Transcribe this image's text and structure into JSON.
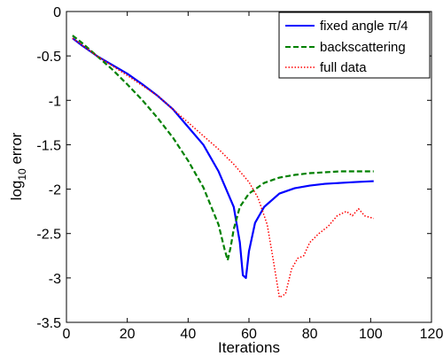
{
  "chart_data": {
    "type": "line",
    "title": "",
    "xlabel": "Iterations",
    "ylabel": {
      "base": "log",
      "sub": "10",
      "rest": " error"
    },
    "xlim": [
      0,
      120
    ],
    "ylim": [
      -3.5,
      0
    ],
    "xticks": [
      "0",
      "20",
      "40",
      "60",
      "80",
      "100",
      "120"
    ],
    "xtick_values": [
      0,
      20,
      40,
      60,
      80,
      100,
      120
    ],
    "yticks": [
      "-3.5",
      "-3",
      "-2.5",
      "-2",
      "-1.5",
      "-1",
      "-0.5",
      "0"
    ],
    "ytick_values": [
      -3.5,
      -3,
      -2.5,
      -2,
      -1.5,
      -1,
      -0.5,
      0
    ],
    "grid": false,
    "legend_position": "top-right",
    "series": [
      {
        "name": "fixed angle π/4",
        "color": "#0000ff",
        "style": "solid",
        "x": [
          2,
          5,
          10,
          15,
          20,
          25,
          30,
          35,
          40,
          45,
          50,
          55,
          57,
          58,
          59,
          60,
          62,
          65,
          70,
          75,
          80,
          85,
          90,
          95,
          101
        ],
        "y": [
          -0.3,
          -0.38,
          -0.5,
          -0.6,
          -0.7,
          -0.82,
          -0.95,
          -1.1,
          -1.3,
          -1.5,
          -1.8,
          -2.2,
          -2.6,
          -2.97,
          -3.0,
          -2.7,
          -2.38,
          -2.2,
          -2.05,
          -1.99,
          -1.96,
          -1.94,
          -1.93,
          -1.92,
          -1.91
        ]
      },
      {
        "name": "backscattering",
        "color": "#008000",
        "style": "dashed",
        "x": [
          2,
          5,
          10,
          15,
          20,
          25,
          30,
          35,
          40,
          45,
          50,
          52,
          53,
          54,
          55,
          57,
          60,
          65,
          70,
          75,
          80,
          85,
          90,
          95,
          101
        ],
        "y": [
          -0.27,
          -0.35,
          -0.5,
          -0.65,
          -0.82,
          -1.0,
          -1.2,
          -1.42,
          -1.68,
          -1.98,
          -2.4,
          -2.68,
          -2.8,
          -2.65,
          -2.45,
          -2.2,
          -2.05,
          -1.93,
          -1.87,
          -1.84,
          -1.82,
          -1.81,
          -1.8,
          -1.8,
          -1.8
        ]
      },
      {
        "name": "full data",
        "color": "#ff0000",
        "style": "dotted",
        "x": [
          2,
          10,
          20,
          30,
          40,
          50,
          55,
          60,
          63,
          66,
          68,
          70,
          72,
          74,
          76,
          78,
          80,
          83,
          86,
          89,
          92,
          94,
          96,
          98,
          101
        ],
        "y": [
          -0.3,
          -0.5,
          -0.72,
          -0.95,
          -1.25,
          -1.55,
          -1.72,
          -1.92,
          -2.1,
          -2.4,
          -2.8,
          -3.22,
          -3.18,
          -2.9,
          -2.78,
          -2.75,
          -2.6,
          -2.5,
          -2.42,
          -2.3,
          -2.25,
          -2.3,
          -2.22,
          -2.3,
          -2.33
        ]
      }
    ]
  }
}
